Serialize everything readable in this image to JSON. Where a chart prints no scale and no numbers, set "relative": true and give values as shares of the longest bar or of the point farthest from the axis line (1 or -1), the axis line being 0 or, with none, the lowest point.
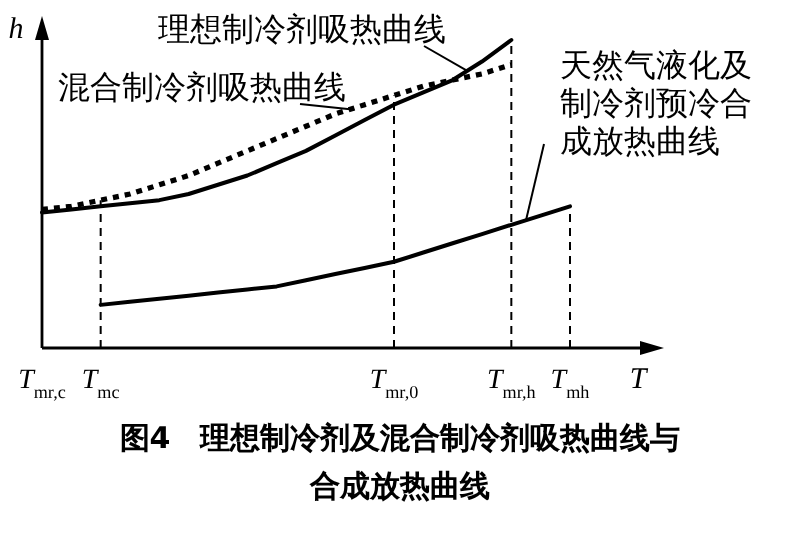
{
  "chart_data": {
    "type": "line",
    "relative": true,
    "title": "图4　理想制冷剂及混合制冷剂吸热曲线与合成放热曲线",
    "xlabel": "T",
    "ylabel": "h",
    "categories": [
      "T$_{mr,c}$",
      null,
      "T$_{mc}$",
      null,
      null,
      null,
      null,
      null,
      null,
      null,
      null,
      null,
      "T$_{mr,0}$",
      null,
      null,
      null,
      "T$_{mr,h}$",
      null,
      "T$_{mh}$"
    ],
    "series": [
      {
        "name": "理想制冷剂吸热曲线",
        "color": "#000000",
        "line_style": "solid",
        "values": [
          0.44,
          0.45,
          0.46,
          0.47,
          0.48,
          0.5,
          0.53,
          0.56,
          0.6,
          0.64,
          0.69,
          0.74,
          0.79,
          0.83,
          0.87,
          0.93,
          1,
          null,
          null
        ]
      },
      {
        "name": "混合制冷剂吸热曲线",
        "color": "#000000",
        "line_style": "dotted",
        "values": [
          0.45,
          0.46,
          0.48,
          0.5,
          0.53,
          0.56,
          0.6,
          0.64,
          0.68,
          0.72,
          0.76,
          0.79,
          0.82,
          0.85,
          0.87,
          0.89,
          0.92,
          null,
          null
        ]
      },
      {
        "name": "天然气液化及制冷剂预冷合成放热曲线",
        "color": "#000000",
        "line_style": "solid",
        "values": [
          null,
          null,
          0.14,
          0.15,
          0.16,
          0.17,
          0.18,
          0.19,
          0.2,
          0.22,
          0.24,
          0.26,
          0.28,
          0.31,
          0.34,
          0.37,
          0.4,
          0.43,
          0.46
        ]
      }
    ],
    "ref_lines": [
      {
        "axis": "x",
        "value": "T$_{mc}$",
        "line_style": "dashed"
      },
      {
        "axis": "x",
        "value": "T$_{mr,0}$",
        "line_style": "dashed"
      },
      {
        "axis": "x",
        "value": "T$_{mr,h}$",
        "line_style": "dashed"
      },
      {
        "axis": "x",
        "value": "T$_{mh}$",
        "line_style": "dashed"
      }
    ]
  }
}
